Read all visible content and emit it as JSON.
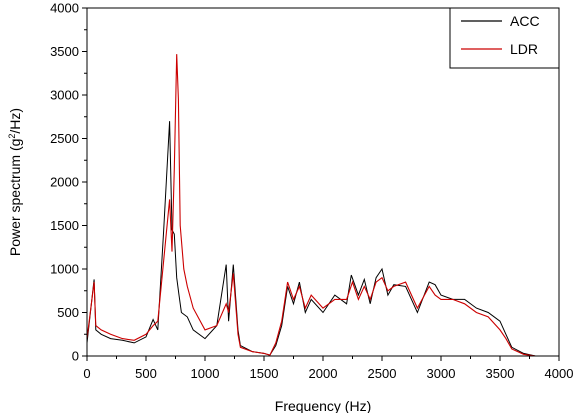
{
  "chart_data": {
    "type": "line",
    "title": "",
    "xlabel": "Frequency (Hz)",
    "ylabel_parts": {
      "pre": "Power spectrum (g",
      "sup": "2",
      "post": "/Hz)"
    },
    "xlim": [
      0,
      4000
    ],
    "ylim": [
      0,
      4000
    ],
    "xticks": [
      0,
      500,
      1000,
      1500,
      2000,
      2500,
      3000,
      3500,
      4000
    ],
    "xtick_labels": [
      "0",
      "500",
      "1000",
      "1500",
      "2000",
      "2500",
      "3000",
      "3500",
      "4000"
    ],
    "yticks": [
      0,
      500,
      1000,
      1500,
      2000,
      2500,
      3000,
      3500,
      4000
    ],
    "ytick_labels": [
      "0",
      "500",
      "1000",
      "1500",
      "2000",
      "2500",
      "3000",
      "3500",
      "4000"
    ],
    "grid": false,
    "legend_position": "top-right",
    "series": [
      {
        "name": "ACC",
        "color": "#000000",
        "x": [
          0,
          60,
          75,
          120,
          200,
          300,
          400,
          500,
          560,
          600,
          650,
          700,
          720,
          740,
          760,
          780,
          800,
          850,
          900,
          1000,
          1100,
          1180,
          1200,
          1240,
          1280,
          1300,
          1400,
          1500,
          1550,
          1600,
          1650,
          1700,
          1750,
          1800,
          1850,
          1900,
          2000,
          2100,
          2200,
          2240,
          2300,
          2350,
          2400,
          2450,
          2500,
          2550,
          2600,
          2700,
          2800,
          2900,
          2950,
          3000,
          3100,
          3200,
          3300,
          3400,
          3500,
          3550,
          3600,
          3700,
          3800,
          3900,
          4000
        ],
        "y": [
          150,
          880,
          300,
          250,
          200,
          180,
          150,
          220,
          420,
          300,
          1450,
          2700,
          1450,
          1400,
          900,
          700,
          500,
          450,
          300,
          200,
          350,
          1050,
          400,
          1050,
          300,
          120,
          50,
          30,
          10,
          120,
          350,
          800,
          600,
          850,
          500,
          650,
          500,
          700,
          600,
          930,
          700,
          880,
          600,
          900,
          1000,
          700,
          820,
          800,
          500,
          850,
          820,
          700,
          650,
          650,
          550,
          500,
          400,
          250,
          100,
          30,
          0,
          0,
          0
        ]
      },
      {
        "name": "LDR",
        "color": "#cc0000",
        "x": [
          0,
          60,
          75,
          120,
          200,
          300,
          400,
          500,
          560,
          600,
          650,
          700,
          720,
          740,
          760,
          775,
          790,
          820,
          850,
          900,
          1000,
          1100,
          1180,
          1200,
          1240,
          1280,
          1300,
          1400,
          1500,
          1550,
          1600,
          1650,
          1700,
          1750,
          1800,
          1850,
          1900,
          2000,
          2100,
          2200,
          2250,
          2300,
          2350,
          2400,
          2450,
          2500,
          2550,
          2600,
          2700,
          2800,
          2900,
          2950,
          3000,
          3100,
          3200,
          3300,
          3400,
          3500,
          3550,
          3600,
          3700,
          3800,
          3900,
          4000
        ],
        "y": [
          200,
          850,
          350,
          300,
          250,
          200,
          180,
          250,
          350,
          400,
          1100,
          1800,
          1200,
          2150,
          3470,
          2950,
          1500,
          1000,
          800,
          550,
          300,
          350,
          600,
          500,
          950,
          250,
          100,
          50,
          30,
          10,
          150,
          400,
          850,
          650,
          800,
          550,
          700,
          550,
          650,
          650,
          850,
          650,
          800,
          650,
          850,
          900,
          750,
          800,
          850,
          550,
          800,
          700,
          650,
          650,
          600,
          500,
          450,
          300,
          200,
          80,
          20,
          0,
          0,
          0
        ]
      }
    ]
  }
}
